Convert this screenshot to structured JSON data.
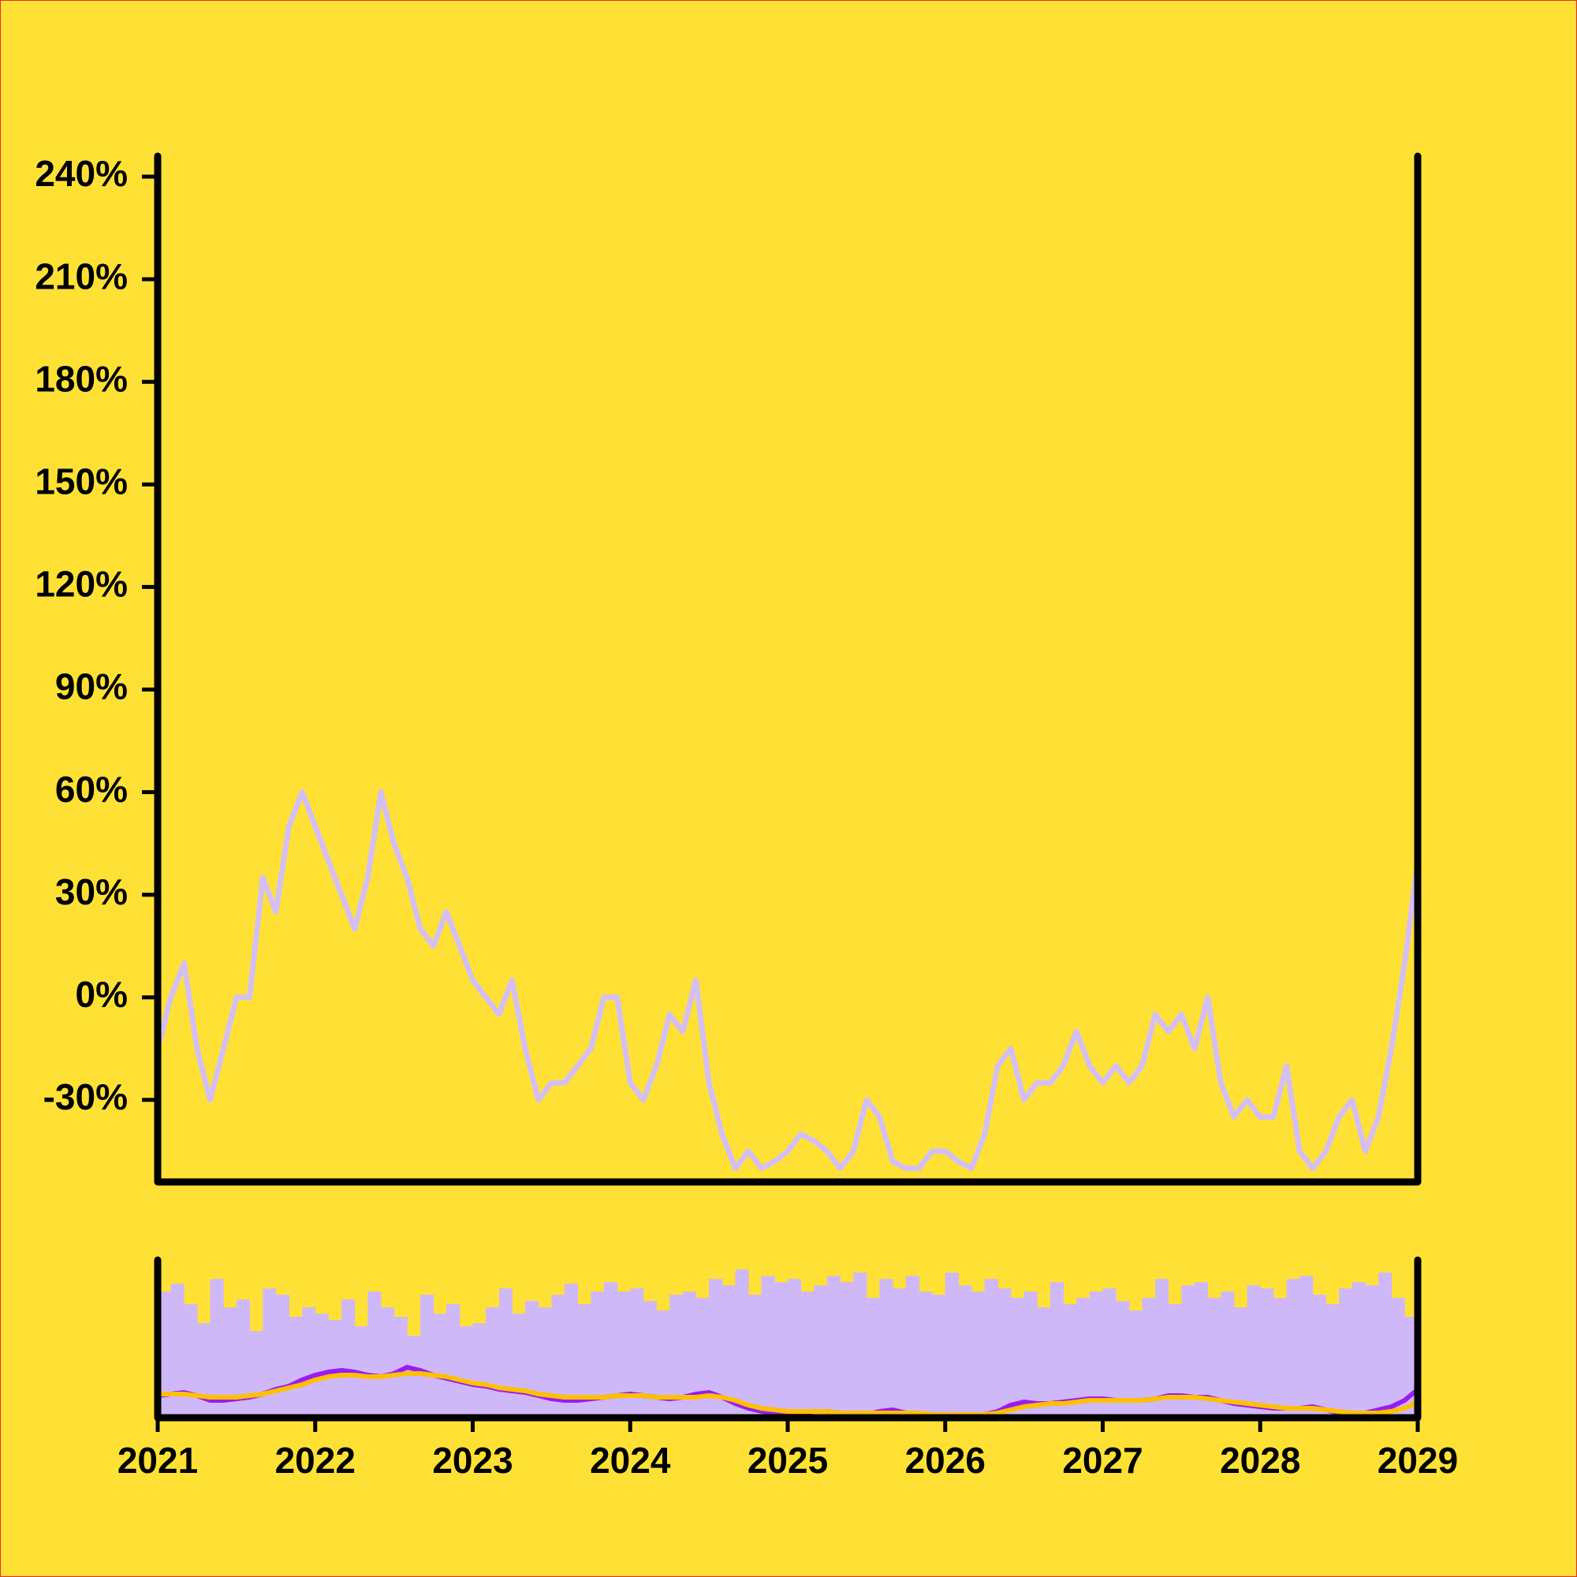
{
  "chart_data": [
    {
      "type": "line",
      "xlim": [
        2021,
        2029
      ],
      "ylim": [
        -54,
        246
      ],
      "yticks": [
        {
          "value": -30,
          "label": "-30%"
        },
        {
          "value": 0,
          "label": "0%"
        },
        {
          "value": 30,
          "label": "30%"
        },
        {
          "value": 60,
          "label": "60%"
        },
        {
          "value": 90,
          "label": "90%"
        },
        {
          "value": 120,
          "label": "120%"
        },
        {
          "value": 150,
          "label": "150%"
        },
        {
          "value": 180,
          "label": "180%"
        },
        {
          "value": 210,
          "label": "210%"
        },
        {
          "value": 240,
          "label": "240%"
        }
      ],
      "x": [
        2021,
        2021.083,
        2021.167,
        2021.25,
        2021.333,
        2021.417,
        2021.5,
        2021.583,
        2021.667,
        2021.75,
        2021.833,
        2021.917,
        2022,
        2022.083,
        2022.167,
        2022.25,
        2022.333,
        2022.417,
        2022.5,
        2022.583,
        2022.667,
        2022.75,
        2022.833,
        2022.917,
        2023,
        2023.083,
        2023.167,
        2023.25,
        2023.333,
        2023.417,
        2023.5,
        2023.583,
        2023.667,
        2023.75,
        2023.833,
        2023.917,
        2024,
        2024.083,
        2024.167,
        2024.25,
        2024.333,
        2024.417,
        2024.5,
        2024.583,
        2024.667,
        2024.75,
        2024.833,
        2024.917,
        2025,
        2025.083,
        2025.167,
        2025.25,
        2025.333,
        2025.417,
        2025.5,
        2025.583,
        2025.667,
        2025.75,
        2025.833,
        2025.917,
        2026,
        2026.083,
        2026.167,
        2026.25,
        2026.333,
        2026.417,
        2026.5,
        2026.583,
        2026.667,
        2026.75,
        2026.833,
        2026.917,
        2027,
        2027.083,
        2027.167,
        2027.25,
        2027.333,
        2027.417,
        2027.5,
        2027.583,
        2027.667,
        2027.75,
        2027.833,
        2027.917,
        2028,
        2028.083,
        2028.167,
        2028.25,
        2028.333,
        2028.417,
        2028.5,
        2028.583,
        2028.667,
        2028.75,
        2028.833,
        2028.917,
        2029
      ],
      "series": [
        {
          "color": "#d4bff5",
          "values": [
            -15,
            0,
            10,
            -15,
            -30,
            -15,
            0,
            0,
            35,
            25,
            50,
            60,
            50,
            40,
            30,
            20,
            35,
            60,
            45,
            35,
            20,
            15,
            25,
            15,
            5,
            0,
            -5,
            5,
            -15,
            -30,
            -25,
            -25,
            -20,
            -15,
            0,
            0,
            -25,
            -30,
            -20,
            -5,
            -10,
            5,
            -25,
            -40,
            -50,
            -45,
            -50,
            -48,
            -45,
            -40,
            -42,
            -45,
            -50,
            -45,
            -30,
            -35,
            -48,
            -50,
            -50,
            -45,
            -45,
            -48,
            -50,
            -40,
            -20,
            -15,
            -30,
            -25,
            -25,
            -20,
            -10,
            -20,
            -25,
            -20,
            -25,
            -20,
            -5,
            -10,
            -5,
            -15,
            0,
            -25,
            -35,
            -30,
            -35,
            -35,
            -20,
            -45,
            -50,
            -45,
            -35,
            -30,
            -45,
            -35,
            -15,
            10,
            40
          ]
        }
      ]
    },
    {
      "type": "bar",
      "xlim": [
        2021,
        2029
      ],
      "ylim": [
        0,
        100
      ],
      "xticks": [
        2021,
        2022,
        2023,
        2024,
        2025,
        2026,
        2027,
        2028,
        2029
      ],
      "x": [
        2021,
        2021.083,
        2021.167,
        2021.25,
        2021.333,
        2021.417,
        2021.5,
        2021.583,
        2021.667,
        2021.75,
        2021.833,
        2021.917,
        2022,
        2022.083,
        2022.167,
        2022.25,
        2022.333,
        2022.417,
        2022.5,
        2022.583,
        2022.667,
        2022.75,
        2022.833,
        2022.917,
        2023,
        2023.083,
        2023.167,
        2023.25,
        2023.333,
        2023.417,
        2023.5,
        2023.583,
        2023.667,
        2023.75,
        2023.833,
        2023.917,
        2024,
        2024.083,
        2024.167,
        2024.25,
        2024.333,
        2024.417,
        2024.5,
        2024.583,
        2024.667,
        2024.75,
        2024.833,
        2024.917,
        2025,
        2025.083,
        2025.167,
        2025.25,
        2025.333,
        2025.417,
        2025.5,
        2025.583,
        2025.667,
        2025.75,
        2025.833,
        2025.917,
        2026,
        2026.083,
        2026.167,
        2026.25,
        2026.333,
        2026.417,
        2026.5,
        2026.583,
        2026.667,
        2026.75,
        2026.833,
        2026.917,
        2027,
        2027.083,
        2027.167,
        2027.25,
        2027.333,
        2027.417,
        2027.5,
        2027.583,
        2027.667,
        2027.75,
        2027.833,
        2027.917,
        2028,
        2028.083,
        2028.167,
        2028.25,
        2028.333,
        2028.417,
        2028.5,
        2028.583,
        2028.667,
        2028.75,
        2028.833,
        2028.917,
        2029
      ],
      "series": [
        {
          "type": "bar",
          "color": "#cfb8f8",
          "values": [
            80,
            85,
            72,
            60,
            88,
            70,
            75,
            55,
            82,
            78,
            64,
            70,
            66,
            62,
            75,
            58,
            80,
            70,
            64,
            52,
            78,
            66,
            72,
            58,
            60,
            70,
            82,
            66,
            74,
            70,
            78,
            85,
            72,
            80,
            86,
            80,
            82,
            74,
            68,
            78,
            80,
            76,
            88,
            84,
            94,
            78,
            90,
            86,
            88,
            80,
            84,
            90,
            86,
            92,
            76,
            88,
            82,
            90,
            80,
            78,
            92,
            84,
            80,
            88,
            82,
            76,
            80,
            70,
            86,
            72,
            76,
            80,
            82,
            74,
            68,
            76,
            88,
            72,
            84,
            86,
            76,
            80,
            70,
            84,
            82,
            76,
            88,
            90,
            78,
            72,
            82,
            86,
            84,
            92,
            76,
            64,
            70
          ]
        },
        {
          "type": "line",
          "color": "#9b1cf2",
          "values": [
            14,
            15,
            16,
            14,
            11,
            11,
            12,
            13,
            15,
            18,
            20,
            24,
            27,
            29,
            30,
            29,
            27,
            26,
            28,
            32,
            30,
            27,
            25,
            23,
            21,
            20,
            18,
            17,
            16,
            14,
            12,
            11,
            11,
            12,
            13,
            14,
            15,
            14,
            13,
            12,
            13,
            15,
            16,
            13,
            9,
            6,
            4,
            3,
            3,
            3,
            4,
            4,
            3,
            2,
            2,
            4,
            5,
            3,
            2,
            2,
            2,
            2,
            2,
            2,
            4,
            8,
            10,
            9,
            9,
            10,
            11,
            12,
            12,
            11,
            11,
            11,
            12,
            14,
            14,
            13,
            13,
            11,
            9,
            8,
            7,
            6,
            6,
            6,
            7,
            5,
            3,
            2,
            3,
            5,
            7,
            11,
            18
          ]
        },
        {
          "type": "line",
          "color": "#ffc000",
          "values": [
            15,
            15,
            15,
            14,
            13,
            13,
            13,
            14,
            15,
            17,
            19,
            21,
            24,
            26,
            27,
            27,
            26,
            26,
            27,
            28,
            28,
            27,
            26,
            24,
            22,
            21,
            19,
            18,
            17,
            15,
            14,
            13,
            13,
            13,
            13,
            14,
            14,
            14,
            13,
            13,
            13,
            13,
            14,
            13,
            11,
            8,
            6,
            5,
            4,
            4,
            4,
            4,
            3,
            3,
            3,
            3,
            3,
            3,
            3,
            2,
            2,
            2,
            2,
            2,
            3,
            5,
            7,
            8,
            9,
            9,
            10,
            11,
            11,
            11,
            11,
            11,
            12,
            13,
            13,
            13,
            12,
            11,
            10,
            9,
            8,
            7,
            6,
            6,
            6,
            5,
            4,
            3,
            3,
            3,
            4,
            6,
            10
          ]
        }
      ]
    }
  ]
}
